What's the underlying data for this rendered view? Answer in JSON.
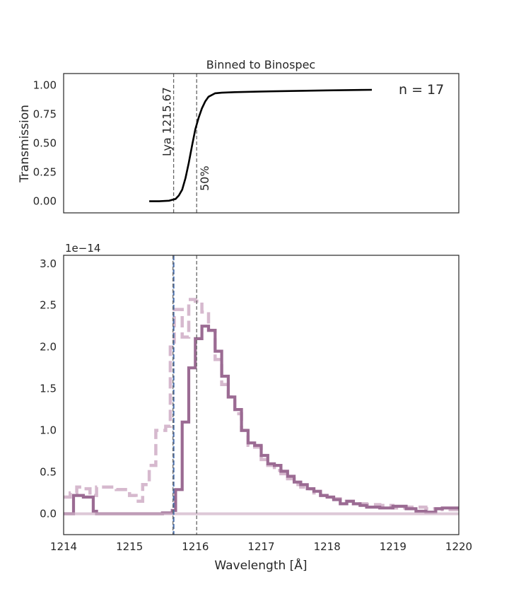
{
  "chart_data": [
    {
      "type": "line",
      "title": "Binned to Binospec",
      "xlabel": "",
      "ylabel": "Transmission",
      "xlim": [
        1214,
        1220
      ],
      "ylim": [
        -0.1,
        1.1
      ],
      "yticks": [
        0.0,
        0.25,
        0.5,
        0.75,
        1.0
      ],
      "ytick_labels": [
        "0.00",
        "0.25",
        "0.50",
        "0.75",
        "1.00"
      ],
      "grid": false,
      "series": [
        {
          "color": "#000000",
          "x": [
            1215.3,
            1215.45,
            1215.6,
            1215.7,
            1215.75,
            1215.8,
            1215.85,
            1215.9,
            1215.95,
            1216.0,
            1216.05,
            1216.1,
            1216.15,
            1216.2,
            1216.3,
            1216.4,
            1216.6,
            1217.0,
            1218.0,
            1218.68
          ],
          "y": [
            0.0,
            0.0,
            0.005,
            0.02,
            0.05,
            0.1,
            0.2,
            0.33,
            0.48,
            0.62,
            0.72,
            0.8,
            0.86,
            0.9,
            0.93,
            0.935,
            0.94,
            0.945,
            0.955,
            0.96
          ]
        }
      ],
      "vlines": [
        {
          "x": 1215.67,
          "label": "Lya 1215.67",
          "color": "#666666",
          "style": "dashed"
        },
        {
          "x": 1216.02,
          "label": "50%",
          "color": "#666666",
          "style": "dashed"
        }
      ],
      "annotations": [
        {
          "text": "n = 17"
        }
      ]
    },
    {
      "type": "line",
      "title": "",
      "xlabel": "Wavelength [Å]",
      "ylabel": "",
      "offset_text": "1e−14",
      "xlim": [
        1214,
        1220
      ],
      "ylim": [
        -0.25,
        3.1
      ],
      "xticks": [
        1214,
        1215,
        1216,
        1217,
        1218,
        1219,
        1220
      ],
      "xtick_labels": [
        "1214",
        "1215",
        "1216",
        "1217",
        "1218",
        "1219",
        "1220"
      ],
      "yticks": [
        0.0,
        0.5,
        1.0,
        1.5,
        2.0,
        2.5,
        3.0
      ],
      "ytick_labels": [
        "0.0",
        "0.5",
        "1.0",
        "1.5",
        "2.0",
        "2.5",
        "3.0"
      ],
      "grid": false,
      "series": [
        {
          "style": "step-solid",
          "color": "#9b6b93",
          "edges": [
            1214.0,
            1214.15,
            1214.3,
            1214.45,
            1214.5,
            1215.2,
            1215.5,
            1215.65,
            1215.7,
            1215.8,
            1215.9,
            1216.0,
            1216.1,
            1216.2,
            1216.3,
            1216.4,
            1216.5,
            1216.6,
            1216.7,
            1216.8,
            1216.9,
            1217.0,
            1217.1,
            1217.2,
            1217.3,
            1217.4,
            1217.5,
            1217.6,
            1217.7,
            1217.8,
            1217.9,
            1218.0,
            1218.1,
            1218.2,
            1218.3,
            1218.4,
            1218.5,
            1218.6,
            1218.8,
            1219.0,
            1219.2,
            1219.35,
            1219.5,
            1219.65,
            1219.75,
            1220.0
          ],
          "values": [
            0.0,
            0.22,
            0.2,
            0.03,
            0.0,
            0.0,
            0.01,
            0.04,
            0.29,
            1.1,
            1.75,
            2.1,
            2.25,
            2.2,
            1.95,
            1.65,
            1.4,
            1.25,
            1.0,
            0.85,
            0.82,
            0.7,
            0.6,
            0.58,
            0.51,
            0.45,
            0.38,
            0.35,
            0.3,
            0.27,
            0.22,
            0.2,
            0.17,
            0.12,
            0.15,
            0.12,
            0.1,
            0.08,
            0.07,
            0.09,
            0.06,
            0.03,
            0.02,
            0.06,
            0.07
          ]
        },
        {
          "style": "step-dashed",
          "color": "#d6b9ce",
          "edges": [
            1214.0,
            1214.1,
            1214.2,
            1214.3,
            1214.4,
            1214.5,
            1214.8,
            1215.0,
            1215.1,
            1215.2,
            1215.3,
            1215.4,
            1215.55,
            1215.62,
            1215.68,
            1215.8,
            1215.9,
            1216.0,
            1216.1,
            1216.2,
            1216.3,
            1216.4,
            1216.5,
            1216.6,
            1216.7,
            1216.8,
            1216.9,
            1217.0,
            1217.1,
            1217.2,
            1217.3,
            1217.4,
            1217.5,
            1217.6,
            1217.7,
            1217.8,
            1217.9,
            1218.0,
            1218.1,
            1218.2,
            1218.3,
            1218.4,
            1218.6,
            1218.8,
            1219.0,
            1219.2,
            1219.5,
            1219.75,
            1220.0
          ],
          "values": [
            0.2,
            0.25,
            0.32,
            0.3,
            0.22,
            0.32,
            0.29,
            0.22,
            0.15,
            0.35,
            0.58,
            1.0,
            1.05,
            2.0,
            2.45,
            2.12,
            2.57,
            2.55,
            2.42,
            2.2,
            1.85,
            1.55,
            1.4,
            1.2,
            1.0,
            0.82,
            0.8,
            0.65,
            0.58,
            0.52,
            0.48,
            0.42,
            0.35,
            0.32,
            0.3,
            0.25,
            0.22,
            0.19,
            0.18,
            0.15,
            0.15,
            0.12,
            0.11,
            0.1,
            0.07,
            0.08,
            0.06,
            0.05
          ]
        },
        {
          "style": "flat",
          "color": "#cfb1c6",
          "x": [
            1214,
            1220
          ],
          "y": [
            0.0,
            0.0
          ]
        }
      ],
      "vlines": [
        {
          "x": 1215.67,
          "color": "#4c72b0",
          "style": "dashed"
        },
        {
          "x": 1215.66,
          "color": "#666666",
          "style": "dashed"
        },
        {
          "x": 1216.02,
          "color": "#666666",
          "style": "dashed"
        }
      ]
    }
  ]
}
